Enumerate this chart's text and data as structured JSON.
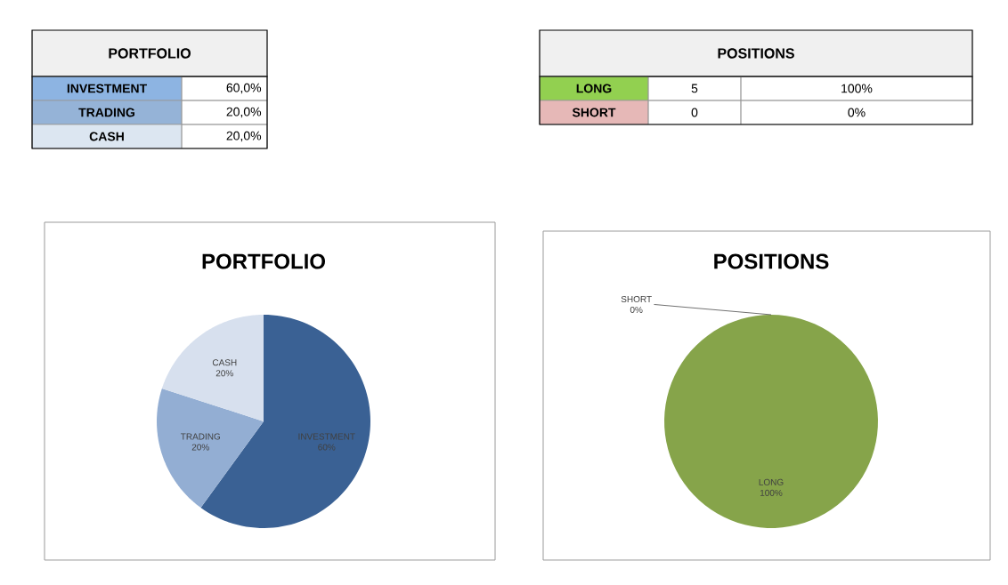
{
  "chart_data": [
    {
      "type": "other",
      "title": "PORTFOLIO",
      "categories": [
        "INVESTMENT",
        "TRADING",
        "CASH"
      ],
      "annotations": [
        "60,0%",
        "20,0%",
        "20,0%"
      ],
      "colors": [
        "#8db4e2",
        "#95b3d7",
        "#dce6f1"
      ]
    },
    {
      "type": "other",
      "title": "POSITIONS",
      "categories": [
        "LONG",
        "SHORT"
      ],
      "annotations": [
        "5",
        "100%",
        "0",
        "0%"
      ],
      "colors": [
        "#92d050",
        "#e6b8b7"
      ]
    },
    {
      "type": "pie",
      "title": "PORTFOLIO",
      "categories": [
        "INVESTMENT",
        "TRADING",
        "CASH"
      ],
      "values": [
        60,
        20,
        20
      ],
      "value_labels": [
        "60%",
        "20%",
        "20%"
      ],
      "colors": [
        "#3a6194",
        "#93aed3",
        "#d7e0ee"
      ]
    },
    {
      "type": "pie",
      "title": "POSITIONS",
      "categories": [
        "LONG",
        "SHORT"
      ],
      "values": [
        100,
        0
      ],
      "value_labels": [
        "100%",
        "0%"
      ],
      "colors": [
        "#86a44a",
        "#c0504d"
      ]
    }
  ]
}
